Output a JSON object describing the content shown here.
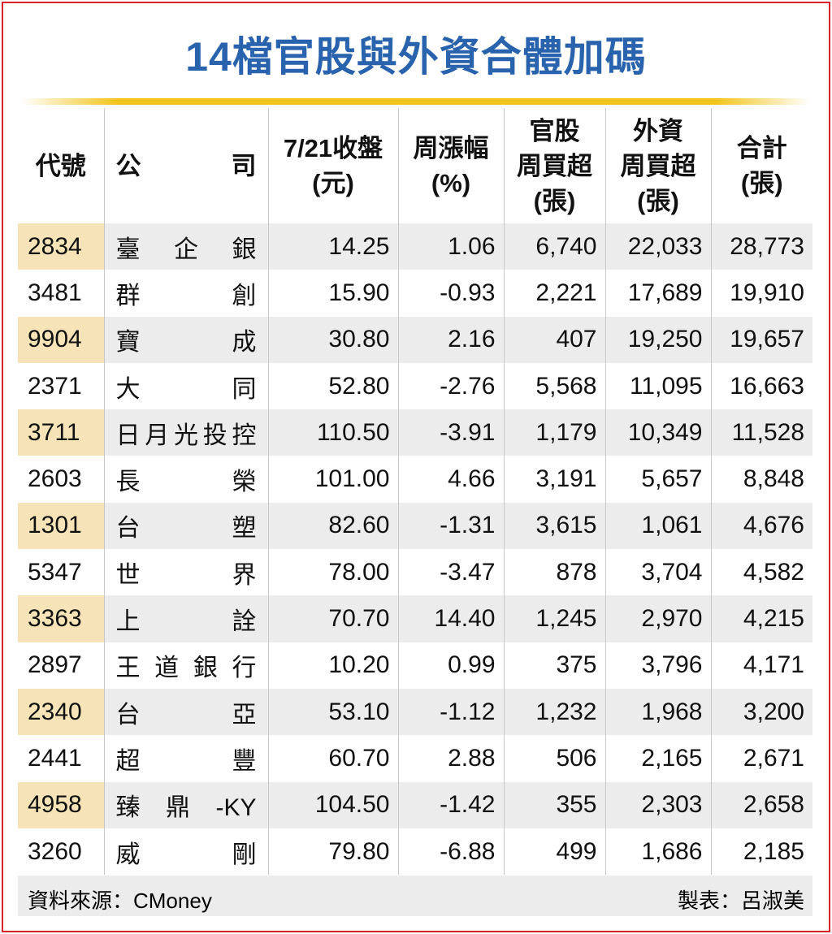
{
  "title": "14檔官股與外資合體加碼",
  "table": {
    "header": [
      [
        "代號"
      ],
      [
        "公",
        "司"
      ],
      [
        "7/21收盤",
        "(元)"
      ],
      [
        "周漲幅",
        "(%)"
      ],
      [
        "官股",
        "周買超",
        "(張)"
      ],
      [
        "外資",
        "周買超",
        "(張)"
      ],
      [
        "合計",
        "(張)"
      ]
    ],
    "rows": [
      [
        "2834",
        "臺企銀",
        "14.25",
        "1.06",
        "6,740",
        "22,033",
        "28,773"
      ],
      [
        "3481",
        "群創",
        "15.90",
        "-0.93",
        "2,221",
        "17,689",
        "19,910"
      ],
      [
        "9904",
        "寶成",
        "30.80",
        "2.16",
        "407",
        "19,250",
        "19,657"
      ],
      [
        "2371",
        "大同",
        "52.80",
        "-2.76",
        "5,568",
        "11,095",
        "16,663"
      ],
      [
        "3711",
        "日月光投控",
        "110.50",
        "-3.91",
        "1,179",
        "10,349",
        "11,528"
      ],
      [
        "2603",
        "長榮",
        "101.00",
        "4.66",
        "3,191",
        "5,657",
        "8,848"
      ],
      [
        "1301",
        "台塑",
        "82.60",
        "-1.31",
        "3,615",
        "1,061",
        "4,676"
      ],
      [
        "5347",
        "世界",
        "78.00",
        "-3.47",
        "878",
        "3,704",
        "4,582"
      ],
      [
        "3363",
        "上詮",
        "70.70",
        "14.40",
        "1,245",
        "2,970",
        "4,215"
      ],
      [
        "2897",
        "王道銀行",
        "10.20",
        "0.99",
        "375",
        "3,796",
        "4,171"
      ],
      [
        "2340",
        "台亞",
        "53.10",
        "-1.12",
        "1,232",
        "1,968",
        "3,200"
      ],
      [
        "2441",
        "超豐",
        "60.70",
        "2.88",
        "506",
        "2,165",
        "2,671"
      ],
      [
        "4958",
        "臻鼎-KY",
        "104.50",
        "-1.42",
        "355",
        "2,303",
        "2,658"
      ],
      [
        "3260",
        "威剛",
        "79.80",
        "-6.88",
        "499",
        "1,686",
        "2,185"
      ]
    ]
  },
  "footer": {
    "source": "資料來源：CMoney",
    "author": "製表：呂淑美"
  }
}
